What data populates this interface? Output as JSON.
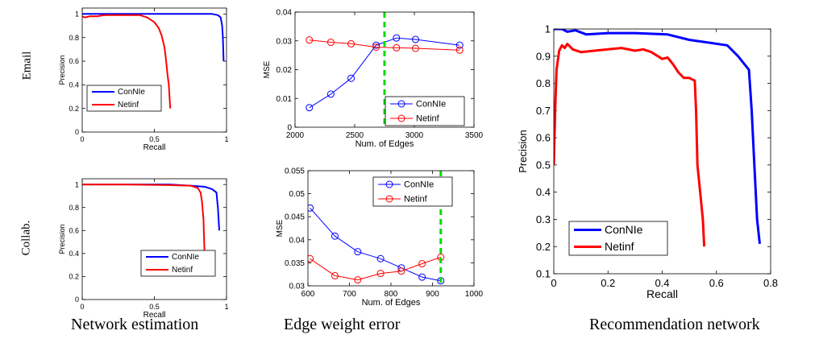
{
  "row_labels": [
    "Email",
    "Collab."
  ],
  "captions": [
    "Network estimation",
    "Edge weight error",
    "Recommendation network"
  ],
  "colors": {
    "ConNIe": "#0000ff",
    "Netinf": "#ff0000",
    "vline": "#00dd00"
  },
  "chart_data": [
    {
      "id": "email-pr",
      "type": "line",
      "xlabel": "Recall",
      "ylabel": "Precision",
      "xlim": [
        0,
        1
      ],
      "ylim": [
        0,
        1.05
      ],
      "xticks": [
        0,
        0.5,
        1
      ],
      "xtick_labels": [
        "0",
        "0.5",
        "1"
      ],
      "yticks": [
        0,
        0.2,
        0.4,
        0.6,
        0.8,
        1
      ],
      "ytick_labels": [
        "0",
        "0.2",
        "0.4",
        "0.6",
        "0.8",
        "1"
      ],
      "legend_position": "bottom-left",
      "series": [
        {
          "name": "ConNIe",
          "color": "#0000ff",
          "points": [
            [
              0,
              1
            ],
            [
              0.3,
              1
            ],
            [
              0.6,
              1
            ],
            [
              0.9,
              1
            ],
            [
              0.94,
              0.99
            ],
            [
              0.96,
              0.97
            ],
            [
              0.97,
              0.9
            ],
            [
              0.975,
              0.8
            ],
            [
              0.98,
              0.6
            ]
          ]
        },
        {
          "name": "Netinf",
          "color": "#ff0000",
          "points": [
            [
              0,
              0.98
            ],
            [
              0.02,
              0.97
            ],
            [
              0.05,
              0.98
            ],
            [
              0.1,
              0.98
            ],
            [
              0.15,
              0.99
            ],
            [
              0.25,
              0.99
            ],
            [
              0.35,
              0.99
            ],
            [
              0.4,
              0.99
            ],
            [
              0.45,
              0.97
            ],
            [
              0.5,
              0.93
            ],
            [
              0.53,
              0.88
            ],
            [
              0.55,
              0.82
            ],
            [
              0.57,
              0.72
            ],
            [
              0.58,
              0.62
            ],
            [
              0.59,
              0.5
            ],
            [
              0.6,
              0.4
            ],
            [
              0.605,
              0.3
            ],
            [
              0.61,
              0.2
            ]
          ]
        }
      ]
    },
    {
      "id": "email-mse",
      "type": "line",
      "xlabel": "Num. of Edges",
      "ylabel": "MSE",
      "xlim": [
        2000,
        3500
      ],
      "ylim": [
        0,
        0.04
      ],
      "xticks": [
        2000,
        2500,
        3000,
        3500
      ],
      "xtick_labels": [
        "2000",
        "2500",
        "3000",
        "3500"
      ],
      "yticks": [
        0,
        0.01,
        0.02,
        0.03,
        0.04
      ],
      "ytick_labels": [
        "0",
        "0.01",
        "0.02",
        "0.03",
        "0.04"
      ],
      "marker": "circle",
      "vline": 2750,
      "legend_position": "lower-right",
      "series": [
        {
          "name": "ConNIe",
          "color": "#0000ff",
          "points": [
            [
              2120,
              0.0068
            ],
            [
              2300,
              0.0115
            ],
            [
              2470,
              0.017
            ],
            [
              2680,
              0.0285
            ],
            [
              2850,
              0.031
            ],
            [
              3010,
              0.0305
            ],
            [
              3380,
              0.0285
            ]
          ]
        },
        {
          "name": "Netinf",
          "color": "#ff0000",
          "points": [
            [
              2120,
              0.0303
            ],
            [
              2300,
              0.0295
            ],
            [
              2470,
              0.029
            ],
            [
              2680,
              0.0278
            ],
            [
              2850,
              0.0276
            ],
            [
              3010,
              0.0274
            ],
            [
              3380,
              0.0268
            ]
          ]
        }
      ]
    },
    {
      "id": "collab-pr",
      "type": "line",
      "xlabel": "Recall",
      "ylabel": "Precision",
      "xlim": [
        0,
        1
      ],
      "ylim": [
        0,
        1.05
      ],
      "xticks": [
        0,
        0.5,
        1
      ],
      "xtick_labels": [
        "0",
        "0.5",
        "1"
      ],
      "yticks": [
        0,
        0.2,
        0.4,
        0.6,
        0.8,
        1
      ],
      "ytick_labels": [
        "0",
        "0.2",
        "0.4",
        "0.6",
        "0.8",
        "1"
      ],
      "legend_position": "bottom-right",
      "series": [
        {
          "name": "ConNIe",
          "color": "#0000ff",
          "points": [
            [
              0,
              1
            ],
            [
              0.3,
              1
            ],
            [
              0.6,
              1
            ],
            [
              0.75,
              0.99
            ],
            [
              0.85,
              0.98
            ],
            [
              0.9,
              0.96
            ],
            [
              0.93,
              0.93
            ],
            [
              0.94,
              0.8
            ],
            [
              0.95,
              0.6
            ]
          ]
        },
        {
          "name": "Netinf",
          "color": "#ff0000",
          "points": [
            [
              0,
              1
            ],
            [
              0.3,
              1
            ],
            [
              0.6,
              0.995
            ],
            [
              0.75,
              0.99
            ],
            [
              0.8,
              0.97
            ],
            [
              0.82,
              0.93
            ],
            [
              0.83,
              0.85
            ],
            [
              0.84,
              0.7
            ],
            [
              0.845,
              0.5
            ],
            [
              0.85,
              0.3
            ],
            [
              0.855,
              0.2
            ]
          ]
        }
      ]
    },
    {
      "id": "collab-mse",
      "type": "line",
      "xlabel": "Num. of Edges",
      "ylabel": "MSE",
      "xlim": [
        600,
        1000
      ],
      "ylim": [
        0.03,
        0.055
      ],
      "xticks": [
        600,
        700,
        800,
        900,
        1000
      ],
      "xtick_labels": [
        "600",
        "700",
        "800",
        "900",
        "1000"
      ],
      "yticks": [
        0.03,
        0.035,
        0.04,
        0.045,
        0.05,
        0.055
      ],
      "ytick_labels": [
        "0.03",
        "0.035",
        "0.04",
        "0.045",
        "0.05",
        "0.055"
      ],
      "marker": "circle",
      "vline": 920,
      "legend_position": "top-right",
      "series": [
        {
          "name": "ConNIe",
          "color": "#0000ff",
          "points": [
            [
              605,
              0.0469
            ],
            [
              665,
              0.0408
            ],
            [
              720,
              0.0374
            ],
            [
              775,
              0.0359
            ],
            [
              825,
              0.0339
            ],
            [
              875,
              0.0319
            ],
            [
              920,
              0.0311
            ]
          ]
        },
        {
          "name": "Netinf",
          "color": "#ff0000",
          "points": [
            [
              605,
              0.0359
            ],
            [
              665,
              0.0322
            ],
            [
              720,
              0.0313
            ],
            [
              775,
              0.0327
            ],
            [
              825,
              0.0332
            ],
            [
              875,
              0.0348
            ],
            [
              920,
              0.0362
            ]
          ]
        }
      ]
    },
    {
      "id": "rec-pr",
      "type": "line",
      "xlabel": "Recall",
      "ylabel": "Precision",
      "xlim": [
        0,
        0.8
      ],
      "ylim": [
        0.1,
        1
      ],
      "xticks": [
        0,
        0.2,
        0.4,
        0.6,
        0.8
      ],
      "xtick_labels": [
        "0",
        "0.2",
        "0.4",
        "0.6",
        "0.8"
      ],
      "yticks": [
        0.1,
        0.2,
        0.3,
        0.4,
        0.5,
        0.6,
        0.7,
        0.8,
        0.9,
        1
      ],
      "ytick_labels": [
        "0.1",
        "0.2",
        "0.3",
        "0.4",
        "0.5",
        "0.6",
        "0.7",
        "0.8",
        "0.9",
        "1"
      ],
      "legend_position": "bottom-left",
      "thick": true,
      "series": [
        {
          "name": "ConNIe",
          "color": "#0000ff",
          "points": [
            [
              0,
              1
            ],
            [
              0.03,
              1
            ],
            [
              0.05,
              0.99
            ],
            [
              0.08,
              0.995
            ],
            [
              0.12,
              0.98
            ],
            [
              0.2,
              0.985
            ],
            [
              0.3,
              0.985
            ],
            [
              0.42,
              0.98
            ],
            [
              0.5,
              0.96
            ],
            [
              0.64,
              0.94
            ],
            [
              0.68,
              0.9
            ],
            [
              0.72,
              0.85
            ],
            [
              0.73,
              0.7
            ],
            [
              0.74,
              0.5
            ],
            [
              0.75,
              0.3
            ],
            [
              0.76,
              0.21
            ]
          ]
        },
        {
          "name": "Netinf",
          "color": "#ff0000",
          "points": [
            [
              0,
              0.5
            ],
            [
              0.005,
              0.7
            ],
            [
              0.01,
              0.85
            ],
            [
              0.02,
              0.92
            ],
            [
              0.03,
              0.94
            ],
            [
              0.04,
              0.93
            ],
            [
              0.05,
              0.945
            ],
            [
              0.07,
              0.925
            ],
            [
              0.1,
              0.915
            ],
            [
              0.15,
              0.92
            ],
            [
              0.2,
              0.925
            ],
            [
              0.25,
              0.93
            ],
            [
              0.3,
              0.92
            ],
            [
              0.33,
              0.925
            ],
            [
              0.36,
              0.915
            ],
            [
              0.4,
              0.89
            ],
            [
              0.42,
              0.895
            ],
            [
              0.44,
              0.87
            ],
            [
              0.46,
              0.84
            ],
            [
              0.48,
              0.82
            ],
            [
              0.5,
              0.82
            ],
            [
              0.52,
              0.81
            ],
            [
              0.525,
              0.7
            ],
            [
              0.53,
              0.5
            ],
            [
              0.54,
              0.4
            ],
            [
              0.55,
              0.3
            ],
            [
              0.555,
              0.2
            ]
          ]
        }
      ]
    }
  ]
}
